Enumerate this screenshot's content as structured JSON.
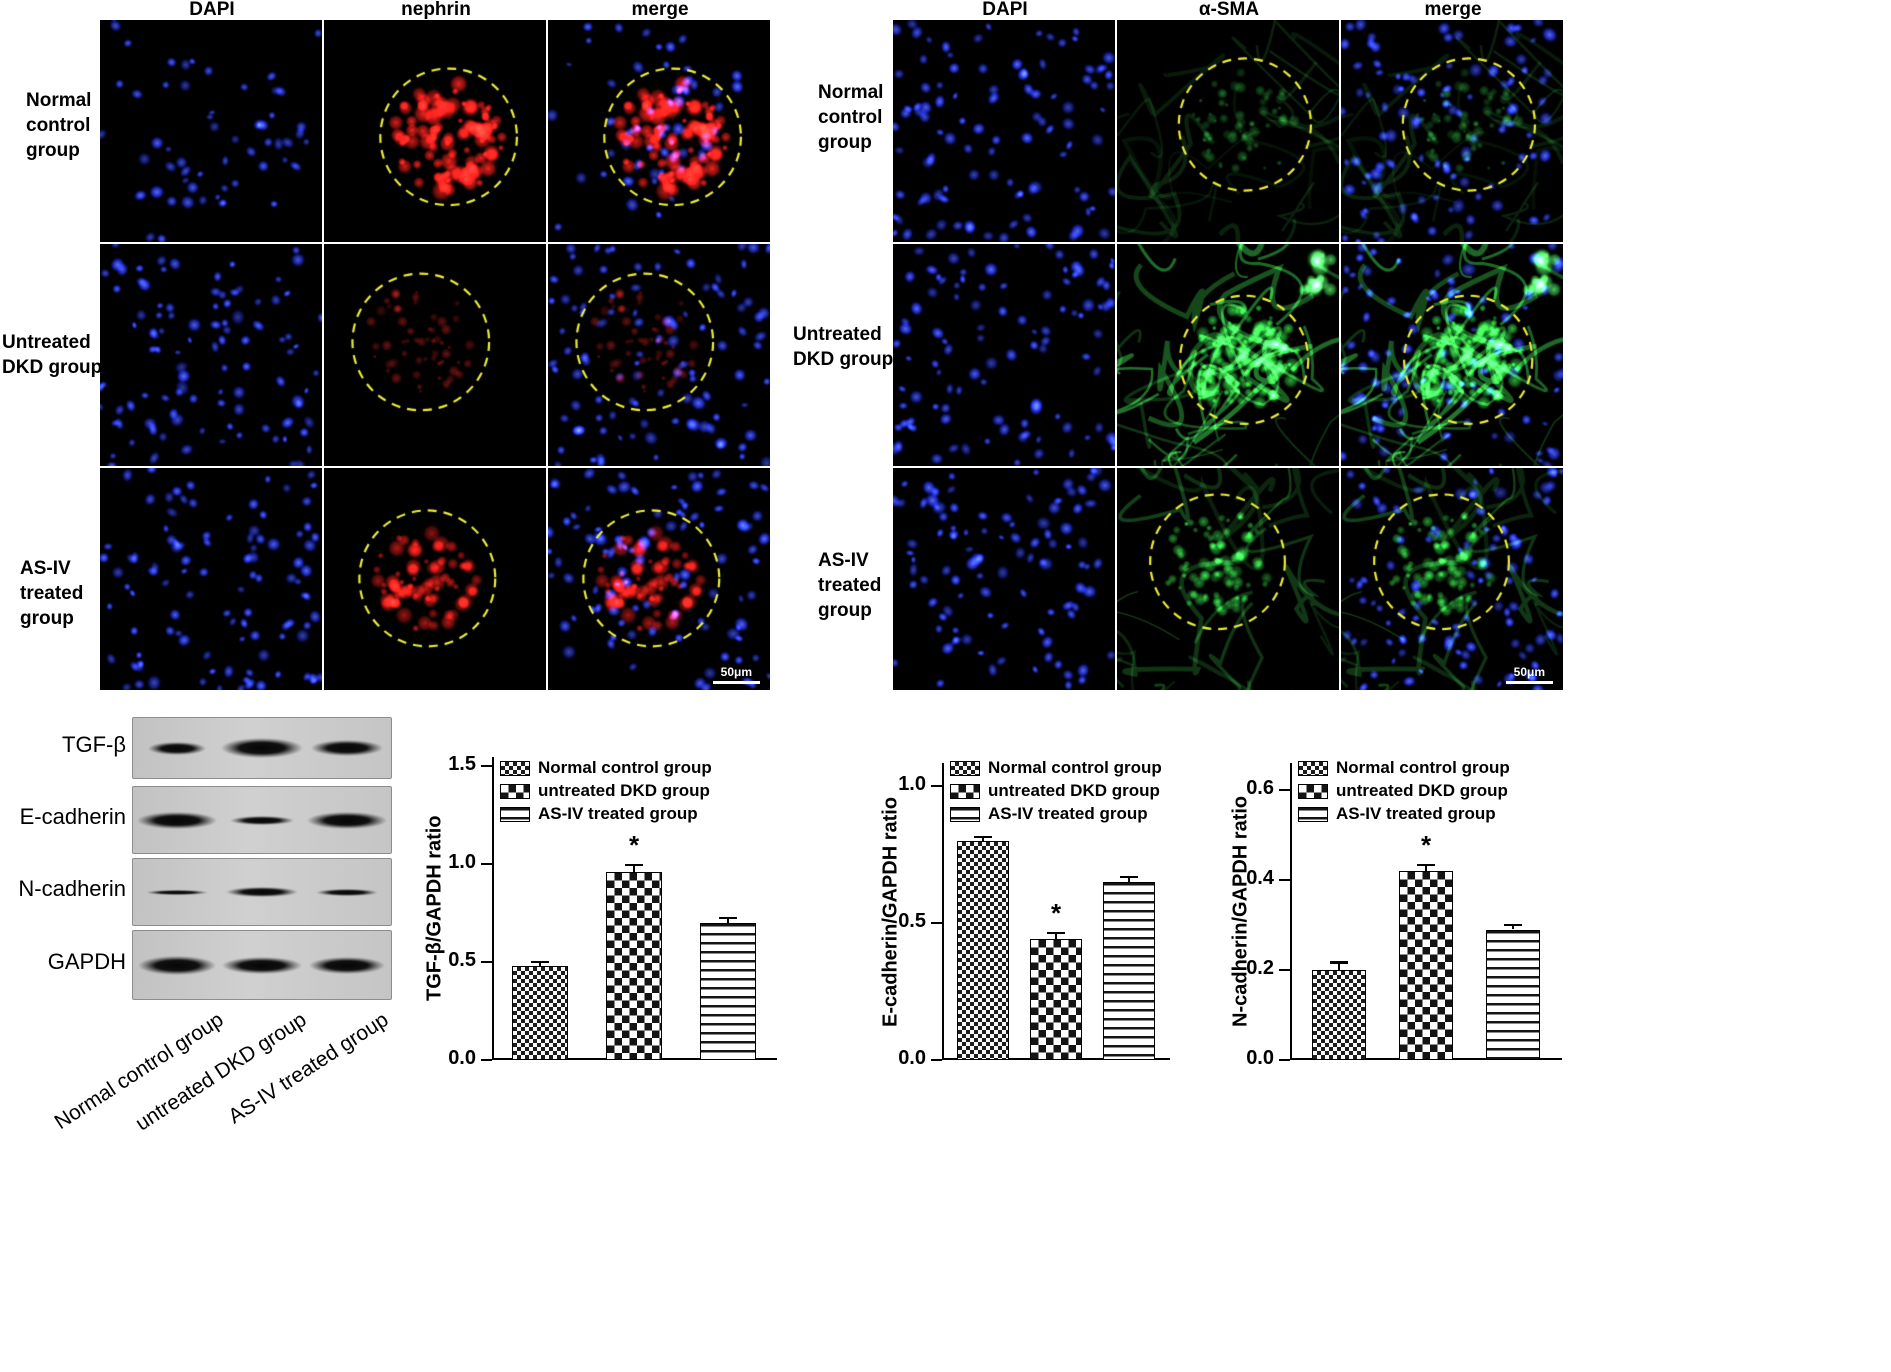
{
  "figure": {
    "if_panels": [
      {
        "id": "nephrin-panel",
        "columns": [
          "DAPI",
          "nephrin",
          "merge"
        ],
        "scale_bar": "50μm",
        "rows": [
          {
            "label": "Normal control group",
            "cells": [
              {
                "nuclei": "sparse"
              },
              {
                "signal": "red-strong",
                "circle": true
              },
              {
                "nuclei": "sparse",
                "signal": "red-strong",
                "circle": true
              }
            ]
          },
          {
            "label": "Untreated DKD group",
            "cells": [
              {
                "nuclei": "dense"
              },
              {
                "signal": "red-weak",
                "circle": true
              },
              {
                "nuclei": "dense",
                "signal": "red-weak",
                "circle": true
              }
            ]
          },
          {
            "label": "AS-IV treated group",
            "cells": [
              {
                "nuclei": "dense"
              },
              {
                "signal": "red-moderate",
                "circle": true
              },
              {
                "nuclei": "dense",
                "signal": "red-moderate",
                "circle": true,
                "scalebar": true
              }
            ]
          }
        ]
      },
      {
        "id": "asma-panel",
        "columns": [
          "DAPI",
          "α-SMA",
          "merge"
        ],
        "scale_bar": "50μm",
        "rows": [
          {
            "label": "Normal control group",
            "cells": [
              {
                "nuclei": "dense"
              },
              {
                "signal": "green-weak",
                "circle": true
              },
              {
                "nuclei": "dense",
                "signal": "green-weak",
                "circle": true
              }
            ]
          },
          {
            "label": "Untreated DKD group",
            "cells": [
              {
                "nuclei": "dense"
              },
              {
                "signal": "green-strong",
                "circle": true
              },
              {
                "nuclei": "dense",
                "signal": "green-strong",
                "circle": true
              }
            ]
          },
          {
            "label": "AS-IV treated group",
            "cells": [
              {
                "nuclei": "dense"
              },
              {
                "signal": "green-moderate",
                "circle": true
              },
              {
                "nuclei": "dense",
                "signal": "green-moderate",
                "circle": true,
                "scalebar": true
              }
            ]
          }
        ]
      }
    ],
    "western_blot": {
      "targets": [
        "TGF-β",
        "E-cadherin",
        "N-cadherin",
        "GAPDH"
      ],
      "lanes": [
        "Normal control group",
        "untreated DKD group",
        "AS-IV treated group"
      ]
    }
  },
  "legend": [
    {
      "label": "Normal control group",
      "pattern": "fine-check"
    },
    {
      "label": "untreated DKD group",
      "pattern": "checker"
    },
    {
      "label": "AS-IV treated group",
      "pattern": "hlines"
    }
  ],
  "colors": {
    "dapi": "#2a3ce0",
    "nephrin": "#ff2420",
    "asma": "#3ce055",
    "glomerulus_circle": "#eded3a"
  },
  "chart_data": [
    {
      "type": "bar",
      "title": "",
      "ylabel": "TGF-β/GAPDH ratio",
      "categories": [
        "Normal control group",
        "untreated DKD group",
        "AS-IV treated group"
      ],
      "values": [
        0.48,
        0.96,
        0.7
      ],
      "errors": [
        0.015,
        0.03,
        0.02
      ],
      "significance": [
        "",
        "*",
        ""
      ],
      "ylim": [
        0,
        1.5
      ],
      "yticks": [
        "0.0",
        "0.5",
        "1.0",
        "1.5"
      ],
      "grid": false,
      "legend_position": "upper-left"
    },
    {
      "type": "bar",
      "title": "",
      "ylabel": "E-cadherin/GAPDH ratio",
      "categories": [
        "Normal control group",
        "untreated DKD group",
        "AS-IV treated group"
      ],
      "values": [
        0.8,
        0.44,
        0.65
      ],
      "errors": [
        0.012,
        0.02,
        0.015
      ],
      "significance": [
        "",
        "*",
        ""
      ],
      "ylim": [
        0,
        1.0
      ],
      "yticks": [
        "0.0",
        "0.5",
        "1.0"
      ],
      "grid": false,
      "legend_position": "upper-left"
    },
    {
      "type": "bar",
      "title": "",
      "ylabel": "N-cadherin/GAPDH ratio",
      "categories": [
        "Normal control group",
        "untreated DKD group",
        "AS-IV treated group"
      ],
      "values": [
        0.2,
        0.42,
        0.29
      ],
      "errors": [
        0.015,
        0.012,
        0.008
      ],
      "significance": [
        "",
        "*",
        ""
      ],
      "ylim": [
        0,
        0.6
      ],
      "yticks": [
        "0.0",
        "0.2",
        "0.4",
        "0.6"
      ],
      "grid": false,
      "legend_position": "upper-left"
    }
  ]
}
